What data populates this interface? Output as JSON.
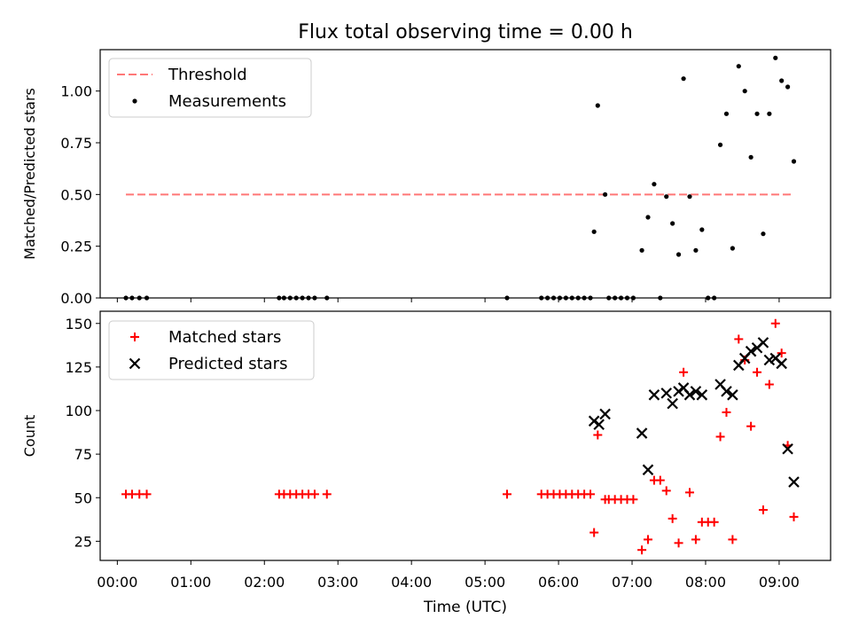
{
  "title": "Flux total observing time = 0.00 h",
  "chart_data": [
    {
      "type": "scatter",
      "panel": "top",
      "ylabel": "Matched/Predicted stars",
      "ylim": [
        0,
        1.2
      ],
      "yticks": [
        0.0,
        0.25,
        0.5,
        0.75,
        1.0
      ],
      "ytick_labels": [
        "0.00",
        "0.25",
        "0.50",
        "0.75",
        "1.00"
      ],
      "legend_placement": "upper-left",
      "threshold": {
        "name": "Threshold",
        "value": 0.5,
        "x_start": "00:07",
        "x_end": "09:12",
        "color": "#ff7777",
        "style": "dashed"
      },
      "series": [
        {
          "name": "Measurements",
          "color": "#000000",
          "marker": "dot",
          "points": [
            [
              "00:07",
              0
            ],
            [
              "00:12",
              0
            ],
            [
              "00:18",
              0
            ],
            [
              "00:24",
              0
            ],
            [
              "02:12",
              0
            ],
            [
              "02:16",
              0
            ],
            [
              "02:21",
              0
            ],
            [
              "02:26",
              0
            ],
            [
              "02:31",
              0
            ],
            [
              "02:36",
              0
            ],
            [
              "02:41",
              0
            ],
            [
              "02:51",
              0
            ],
            [
              "05:18",
              0
            ],
            [
              "05:46",
              0
            ],
            [
              "05:51",
              0
            ],
            [
              "05:56",
              0
            ],
            [
              "06:01",
              0
            ],
            [
              "06:06",
              0
            ],
            [
              "06:11",
              0
            ],
            [
              "06:16",
              0
            ],
            [
              "06:21",
              0
            ],
            [
              "06:26",
              0
            ],
            [
              "06:29",
              0.32
            ],
            [
              "06:32",
              0.93
            ],
            [
              "06:38",
              0.5
            ],
            [
              "06:41",
              0
            ],
            [
              "06:46",
              0
            ],
            [
              "06:51",
              0
            ],
            [
              "06:56",
              0
            ],
            [
              "07:01",
              0
            ],
            [
              "07:08",
              0.23
            ],
            [
              "07:13",
              0.39
            ],
            [
              "07:18",
              0.55
            ],
            [
              "07:23",
              0
            ],
            [
              "07:28",
              0.49
            ],
            [
              "07:33",
              0.36
            ],
            [
              "07:38",
              0.21
            ],
            [
              "07:42",
              1.06
            ],
            [
              "07:47",
              0.49
            ],
            [
              "07:52",
              0.23
            ],
            [
              "07:57",
              0.33
            ],
            [
              "08:02",
              0
            ],
            [
              "08:07",
              0
            ],
            [
              "08:12",
              0.74
            ],
            [
              "08:17",
              0.89
            ],
            [
              "08:22",
              0.24
            ],
            [
              "08:27",
              1.12
            ],
            [
              "08:32",
              1.0
            ],
            [
              "08:37",
              0.68
            ],
            [
              "08:42",
              0.89
            ],
            [
              "08:47",
              0.31
            ],
            [
              "08:52",
              0.89
            ],
            [
              "08:57",
              1.16
            ],
            [
              "09:02",
              1.05
            ],
            [
              "09:07",
              1.02
            ],
            [
              "09:12",
              0.66
            ]
          ]
        }
      ]
    },
    {
      "type": "scatter",
      "panel": "bottom",
      "xlabel": "Time (UTC)",
      "ylabel": "Count",
      "ylim": [
        14,
        157
      ],
      "yticks": [
        25,
        50,
        75,
        100,
        125,
        150
      ],
      "xlim": [
        "-00:14",
        "09:42"
      ],
      "xticks": [
        "00:00",
        "01:00",
        "02:00",
        "03:00",
        "04:00",
        "05:00",
        "06:00",
        "07:00",
        "08:00",
        "09:00"
      ],
      "legend_placement": "upper-left",
      "series": [
        {
          "name": "Matched stars",
          "color": "#ff0000",
          "marker": "plus",
          "points": [
            [
              "00:07",
              52
            ],
            [
              "00:12",
              52
            ],
            [
              "00:18",
              52
            ],
            [
              "00:24",
              52
            ],
            [
              "02:12",
              52
            ],
            [
              "02:16",
              52
            ],
            [
              "02:21",
              52
            ],
            [
              "02:26",
              52
            ],
            [
              "02:31",
              52
            ],
            [
              "02:36",
              52
            ],
            [
              "02:41",
              52
            ],
            [
              "02:51",
              52
            ],
            [
              "05:18",
              52
            ],
            [
              "05:46",
              52
            ],
            [
              "05:51",
              52
            ],
            [
              "05:56",
              52
            ],
            [
              "06:01",
              52
            ],
            [
              "06:06",
              52
            ],
            [
              "06:11",
              52
            ],
            [
              "06:16",
              52
            ],
            [
              "06:21",
              52
            ],
            [
              "06:26",
              52
            ],
            [
              "06:29",
              30
            ],
            [
              "06:32",
              86
            ],
            [
              "06:38",
              49
            ],
            [
              "06:41",
              49
            ],
            [
              "06:46",
              49
            ],
            [
              "06:51",
              49
            ],
            [
              "06:56",
              49
            ],
            [
              "07:01",
              49
            ],
            [
              "07:08",
              20
            ],
            [
              "07:13",
              26
            ],
            [
              "07:18",
              60
            ],
            [
              "07:23",
              60
            ],
            [
              "07:28",
              54
            ],
            [
              "07:33",
              38
            ],
            [
              "07:38",
              24
            ],
            [
              "07:42",
              122
            ],
            [
              "07:47",
              53
            ],
            [
              "07:52",
              26
            ],
            [
              "07:57",
              36
            ],
            [
              "08:02",
              36
            ],
            [
              "08:07",
              36
            ],
            [
              "08:12",
              85
            ],
            [
              "08:17",
              99
            ],
            [
              "08:22",
              26
            ],
            [
              "08:27",
              141
            ],
            [
              "08:32",
              129
            ],
            [
              "08:37",
              91
            ],
            [
              "08:42",
              122
            ],
            [
              "08:47",
              43
            ],
            [
              "08:52",
              115
            ],
            [
              "08:57",
              150
            ],
            [
              "09:02",
              133
            ],
            [
              "09:07",
              80
            ],
            [
              "09:12",
              39
            ]
          ]
        },
        {
          "name": "Predicted stars",
          "color": "#000000",
          "marker": "x",
          "points": [
            [
              "06:29",
              94
            ],
            [
              "06:33",
              92
            ],
            [
              "06:38",
              98
            ],
            [
              "07:08",
              87
            ],
            [
              "07:13",
              66
            ],
            [
              "07:18",
              109
            ],
            [
              "07:28",
              110
            ],
            [
              "07:33",
              104
            ],
            [
              "07:38",
              111
            ],
            [
              "07:42",
              113
            ],
            [
              "07:47",
              109
            ],
            [
              "07:52",
              111
            ],
            [
              "07:57",
              109
            ],
            [
              "08:12",
              115
            ],
            [
              "08:17",
              111
            ],
            [
              "08:22",
              109
            ],
            [
              "08:27",
              126
            ],
            [
              "08:32",
              130
            ],
            [
              "08:37",
              134
            ],
            [
              "08:42",
              136
            ],
            [
              "08:47",
              139
            ],
            [
              "08:52",
              129
            ],
            [
              "08:57",
              130
            ],
            [
              "09:02",
              127
            ],
            [
              "09:07",
              78
            ],
            [
              "09:12",
              59
            ]
          ]
        }
      ]
    }
  ]
}
